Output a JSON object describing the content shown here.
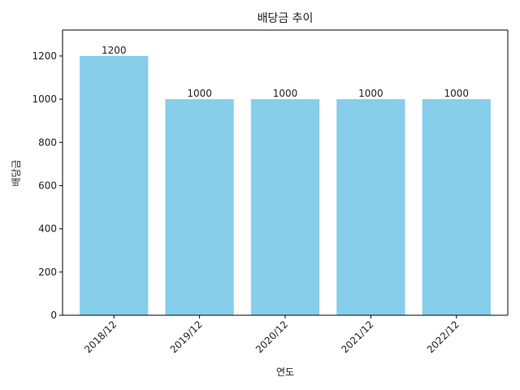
{
  "chart_data": {
    "type": "bar",
    "title": "배당금 추이",
    "xlabel": "연도",
    "ylabel": "배당금",
    "categories": [
      "2018/12",
      "2019/12",
      "2020/12",
      "2021/12",
      "2022/12"
    ],
    "values": [
      1200,
      1000,
      1000,
      1000,
      1000
    ],
    "data_labels": [
      "1200",
      "1000",
      "1000",
      "1000",
      "1000"
    ],
    "ylim": [
      0,
      1320
    ],
    "yticks": [
      0,
      200,
      400,
      600,
      800,
      1000,
      1200
    ],
    "x_tick_rotation_deg": 45,
    "bar_color": "#87ceeb",
    "grid": false,
    "legend": "none"
  }
}
